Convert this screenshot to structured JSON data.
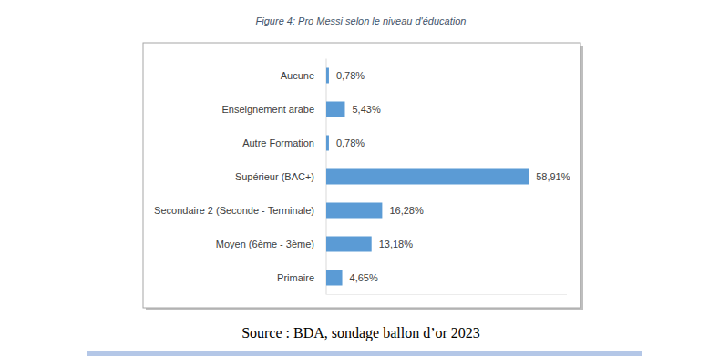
{
  "chart_data": {
    "type": "bar",
    "orientation": "horizontal",
    "title": "Figure 4: Pro Messi selon le niveau d'éducation",
    "source": "Source : BDA, sondage ballon d’or 2023",
    "categories": [
      "Aucune",
      "Enseignement arabe",
      "Autre Formation",
      "Supérieur (BAC+)",
      "Secondaire 2 (Seconde - Terminale)",
      "Moyen (6ème - 3ème)",
      "Primaire"
    ],
    "values": [
      0.78,
      5.43,
      0.78,
      58.91,
      16.28,
      13.18,
      4.65
    ],
    "value_labels": [
      "0,78%",
      "5,43%",
      "0,78%",
      "58,91%",
      "16,28%",
      "13,18%",
      "4,65%"
    ],
    "color": "#5b9bd5",
    "xlim": [
      0,
      70
    ],
    "grid": false,
    "data_labels": true,
    "tick_labels": "y"
  }
}
